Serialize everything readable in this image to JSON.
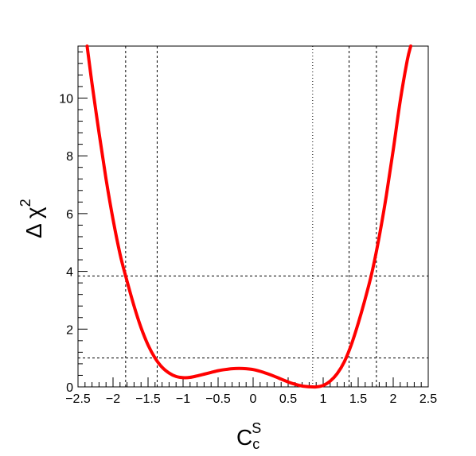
{
  "chart_data": {
    "type": "line",
    "title": "",
    "xlabel": {
      "main": "C",
      "sub": "c",
      "sup": "S"
    },
    "ylabel": {
      "main": "Δ χ",
      "sup": "2"
    },
    "xlim": [
      -2.5,
      2.5
    ],
    "ylim": [
      0,
      11.8
    ],
    "x_tick_labels": [
      "-2.5",
      "-2",
      "-1.5",
      "-1",
      "-0.5",
      "0",
      "0.5",
      "1",
      "1.5",
      "2",
      "2.5"
    ],
    "y_tick_labels": [
      "0",
      "2",
      "4",
      "6",
      "8",
      "10"
    ],
    "series": [
      {
        "color": "#ff0000",
        "x": [
          -2.37,
          -2.3,
          -2.2,
          -2.1,
          -2.0,
          -1.9,
          -1.82,
          -1.7,
          -1.6,
          -1.5,
          -1.4,
          -1.3,
          -1.2,
          -1.1,
          -1.0,
          -0.9,
          -0.8,
          -0.7,
          -0.6,
          -0.5,
          -0.4,
          -0.3,
          -0.2,
          -0.1,
          0.0,
          0.1,
          0.2,
          0.3,
          0.4,
          0.5,
          0.6,
          0.7,
          0.8,
          0.9,
          1.0,
          1.1,
          1.2,
          1.3,
          1.4,
          1.5,
          1.6,
          1.7,
          1.8,
          1.9,
          2.0,
          2.1,
          2.2,
          2.25
        ],
        "y": [
          11.8,
          10.5,
          8.8,
          7.2,
          5.8,
          4.6,
          3.84,
          2.8,
          2.05,
          1.45,
          1.0,
          0.68,
          0.48,
          0.36,
          0.32,
          0.33,
          0.38,
          0.44,
          0.5,
          0.56,
          0.6,
          0.63,
          0.64,
          0.63,
          0.6,
          0.54,
          0.46,
          0.37,
          0.27,
          0.17,
          0.09,
          0.03,
          0.005,
          0.0,
          0.05,
          0.2,
          0.46,
          0.86,
          1.45,
          2.2,
          3.05,
          4.0,
          5.2,
          6.6,
          8.2,
          9.9,
          11.3,
          11.8
        ]
      }
    ],
    "reference_lines": {
      "horizontal": [
        1.0,
        3.84
      ],
      "vertical_dashed": [
        -1.82,
        -1.37,
        1.37,
        1.76
      ],
      "vertical_dotted": [
        0.85
      ]
    },
    "grid": false,
    "legend": "none"
  }
}
